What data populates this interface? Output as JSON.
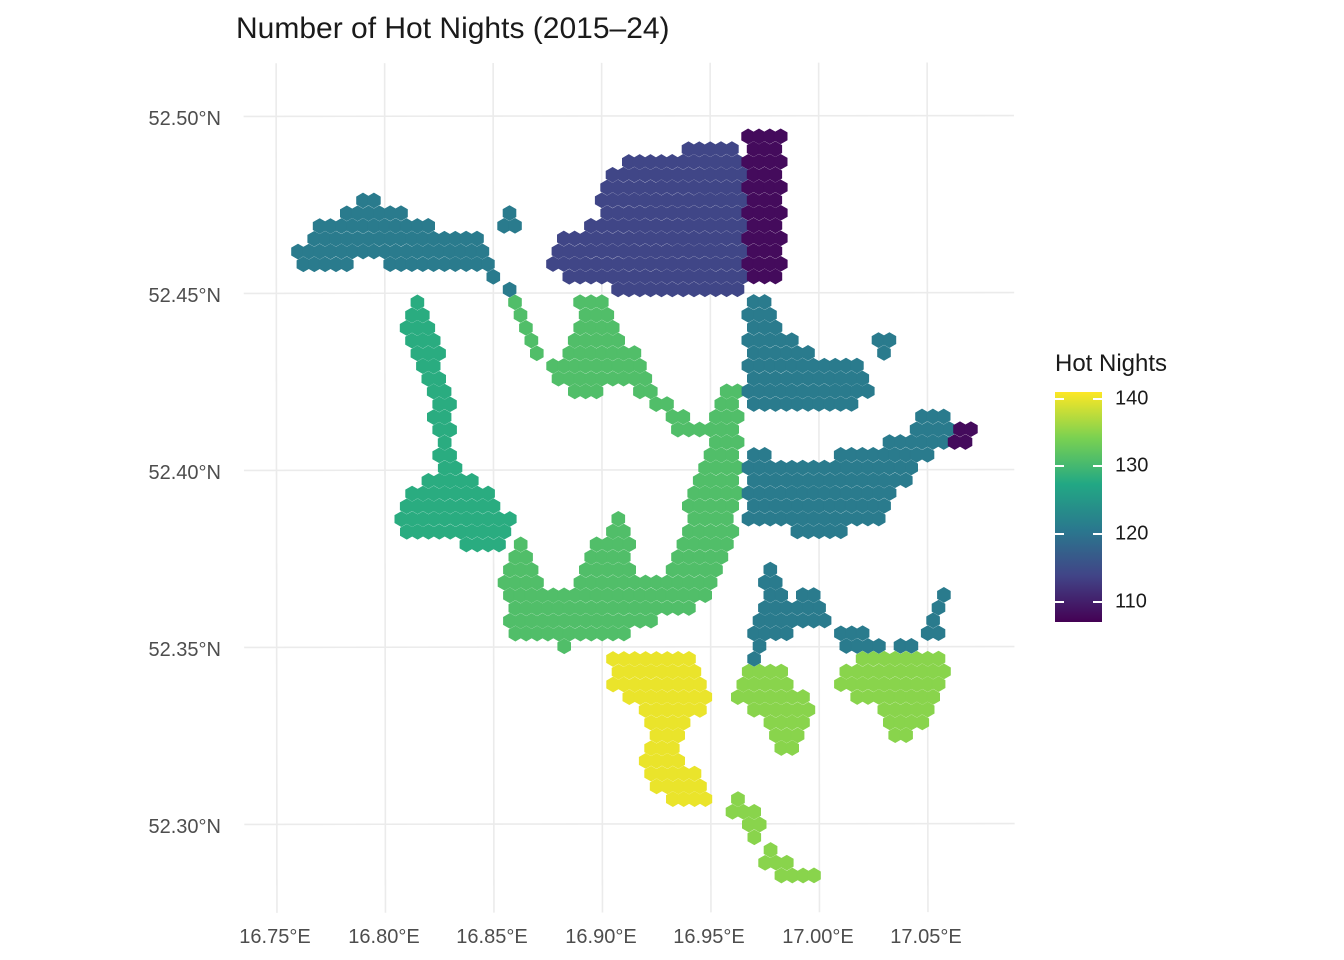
{
  "title": "Number of Hot Nights (2015–24)",
  "x_ticks": [
    "16.75°E",
    "16.80°E",
    "16.85°E",
    "16.90°E",
    "16.95°E",
    "17.00°E",
    "17.05°E"
  ],
  "y_ticks": [
    "52.50°N",
    "52.45°N",
    "52.40°N",
    "52.35°N",
    "52.30°N"
  ],
  "legend": {
    "title": "Hot Nights",
    "ticks": [
      "140",
      "130",
      "120",
      "110"
    ],
    "tick_values": [
      140,
      130,
      120,
      110
    ],
    "range": [
      107,
      141
    ],
    "colormap": "viridis",
    "colors": [
      "#440154",
      "#414487",
      "#2a788e",
      "#22a884",
      "#7ad151",
      "#fde725"
    ]
  },
  "chart_data": {
    "type": "heatmap",
    "title": "Number of Hot Nights (2015–24)",
    "xlabel": "",
    "ylabel": "",
    "xlim": [
      16.735,
      17.09
    ],
    "ylim": [
      52.275,
      52.515
    ],
    "grid": true,
    "legend_position": "right",
    "value_label": "Hot Nights",
    "cell_spacing": 0.005,
    "zones": [
      {
        "name": "far north-east strip",
        "value": 108,
        "polygon": [
          [
            16.965,
            52.497
          ],
          [
            16.983,
            52.497
          ],
          [
            16.983,
            52.455
          ],
          [
            16.99,
            52.452
          ],
          [
            16.965,
            52.451
          ]
        ]
      },
      {
        "name": "east tip",
        "value": 108,
        "polygon": [
          [
            17.061,
            52.414
          ],
          [
            17.072,
            52.413
          ],
          [
            17.066,
            52.406
          ],
          [
            17.06,
            52.408
          ]
        ]
      },
      {
        "name": "north",
        "value": 114,
        "polygon": [
          [
            16.901,
            52.484
          ],
          [
            16.92,
            52.49
          ],
          [
            16.945,
            52.491
          ],
          [
            16.96,
            52.493
          ],
          [
            16.965,
            52.489
          ],
          [
            16.965,
            52.451
          ],
          [
            16.928,
            52.449
          ],
          [
            16.89,
            52.452
          ],
          [
            16.876,
            52.458
          ],
          [
            16.882,
            52.467
          ],
          [
            16.898,
            52.471
          ]
        ]
      },
      {
        "name": "north-west",
        "value": 121,
        "polygon": [
          [
            16.755,
            52.46
          ],
          [
            16.77,
            52.47
          ],
          [
            16.795,
            52.478
          ],
          [
            16.815,
            52.47
          ],
          [
            16.845,
            52.465
          ],
          [
            16.852,
            52.456
          ],
          [
            16.86,
            52.45
          ],
          [
            16.85,
            52.454
          ],
          [
            16.835,
            52.456
          ],
          [
            16.81,
            52.455
          ],
          [
            16.795,
            52.46
          ],
          [
            16.775,
            52.456
          ],
          [
            16.765,
            52.457
          ]
        ]
      },
      {
        "name": "north-west islet",
        "value": 121,
        "polygon": [
          [
            16.854,
            52.474
          ],
          [
            16.86,
            52.474
          ],
          [
            16.86,
            52.468
          ],
          [
            16.854,
            52.468
          ]
        ]
      },
      {
        "name": "east",
        "value": 121,
        "polygon": [
          [
            16.965,
            52.451
          ],
          [
            16.975,
            52.448
          ],
          [
            16.985,
            52.438
          ],
          [
            16.998,
            52.432
          ],
          [
            17.015,
            52.433
          ],
          [
            17.025,
            52.425
          ],
          [
            17.018,
            52.417
          ],
          [
            17.0,
            52.418
          ],
          [
            16.985,
            52.416
          ],
          [
            16.965,
            52.415
          ]
        ]
      },
      {
        "name": "east-centre",
        "value": 121,
        "polygon": [
          [
            16.965,
            52.407
          ],
          [
            16.978,
            52.404
          ],
          [
            16.995,
            52.403
          ],
          [
            17.015,
            52.405
          ],
          [
            17.038,
            52.409
          ],
          [
            17.045,
            52.415
          ],
          [
            17.058,
            52.416
          ],
          [
            17.062,
            52.408
          ],
          [
            17.048,
            52.401
          ],
          [
            17.035,
            52.393
          ],
          [
            17.03,
            52.386
          ],
          [
            17.015,
            52.383
          ],
          [
            17.0,
            52.381
          ],
          [
            16.985,
            52.383
          ],
          [
            16.965,
            52.386
          ]
        ]
      },
      {
        "name": "east islet",
        "value": 121,
        "polygon": [
          [
            17.027,
            52.44
          ],
          [
            17.034,
            52.44
          ],
          [
            17.034,
            52.43
          ],
          [
            17.027,
            52.43
          ]
        ]
      },
      {
        "name": "south-east pocket",
        "value": 121,
        "polygon": [
          [
            16.968,
            52.356
          ],
          [
            16.978,
            52.374
          ],
          [
            16.988,
            52.364
          ],
          [
            16.998,
            52.366
          ],
          [
            17.004,
            52.357
          ],
          [
            16.992,
            52.354
          ],
          [
            16.978,
            52.353
          ],
          [
            16.97,
            52.346
          ]
        ]
      },
      {
        "name": "south-east strip",
        "value": 121,
        "polygon": [
          [
            17.008,
            52.357
          ],
          [
            17.02,
            52.355
          ],
          [
            17.033,
            52.35
          ],
          [
            17.055,
            52.352
          ],
          [
            17.06,
            52.372
          ],
          [
            17.055,
            52.362
          ],
          [
            17.045,
            52.349
          ],
          [
            17.03,
            52.347
          ],
          [
            17.01,
            52.347
          ]
        ]
      },
      {
        "name": "west arm",
        "value": 128,
        "polygon": [
          [
            16.812,
            52.449
          ],
          [
            16.824,
            52.443
          ],
          [
            16.826,
            52.432
          ],
          [
            16.832,
            52.42
          ],
          [
            16.832,
            52.403
          ],
          [
            16.84,
            52.398
          ],
          [
            16.85,
            52.392
          ],
          [
            16.86,
            52.385
          ],
          [
            16.855,
            52.376
          ],
          [
            16.845,
            52.378
          ],
          [
            16.83,
            52.38
          ],
          [
            16.808,
            52.381
          ],
          [
            16.806,
            52.392
          ],
          [
            16.822,
            52.398
          ],
          [
            16.825,
            52.408
          ],
          [
            16.82,
            52.42
          ],
          [
            16.815,
            52.432
          ],
          [
            16.808,
            52.44
          ]
        ]
      },
      {
        "name": "central corridor",
        "value": 131,
        "polygon": [
          [
            16.858,
            52.452
          ],
          [
            16.862,
            52.44
          ],
          [
            16.868,
            52.432
          ],
          [
            16.882,
            52.43
          ],
          [
            16.89,
            52.448
          ],
          [
            16.9,
            52.451
          ],
          [
            16.908,
            52.44
          ],
          [
            16.918,
            52.43
          ],
          [
            16.932,
            52.418
          ],
          [
            16.946,
            52.412
          ],
          [
            16.964,
            52.428
          ],
          [
            16.964,
            52.39
          ],
          [
            16.955,
            52.372
          ],
          [
            16.948,
            52.362
          ],
          [
            16.925,
            52.357
          ],
          [
            16.905,
            52.352
          ],
          [
            16.88,
            52.35
          ],
          [
            16.86,
            52.352
          ],
          [
            16.852,
            52.368
          ],
          [
            16.862,
            52.384
          ],
          [
            16.87,
            52.374
          ],
          [
            16.875,
            52.365
          ],
          [
            16.885,
            52.368
          ],
          [
            16.895,
            52.38
          ],
          [
            16.9,
            52.38
          ],
          [
            16.908,
            52.392
          ],
          [
            16.912,
            52.38
          ],
          [
            16.918,
            52.368
          ],
          [
            16.93,
            52.37
          ],
          [
            16.935,
            52.38
          ],
          [
            16.942,
            52.395
          ],
          [
            16.95,
            52.408
          ],
          [
            16.935,
            52.41
          ],
          [
            16.925,
            52.418
          ],
          [
            16.908,
            52.425
          ],
          [
            16.89,
            52.42
          ],
          [
            16.872,
            52.43
          ]
        ]
      },
      {
        "name": "south",
        "value": 140,
        "polygon": [
          [
            16.903,
            52.35
          ],
          [
            16.93,
            52.35
          ],
          [
            16.945,
            52.345
          ],
          [
            16.952,
            52.335
          ],
          [
            16.942,
            52.33
          ],
          [
            16.935,
            52.32
          ],
          [
            16.948,
            52.313
          ],
          [
            16.95,
            52.306
          ],
          [
            16.938,
            52.303
          ],
          [
            16.925,
            52.308
          ],
          [
            16.918,
            52.316
          ],
          [
            16.922,
            52.33
          ],
          [
            16.912,
            52.336
          ],
          [
            16.903,
            52.34
          ]
        ]
      },
      {
        "name": "south-east",
        "value": 135,
        "polygon": [
          [
            16.96,
            52.34
          ],
          [
            16.97,
            52.347
          ],
          [
            16.982,
            52.345
          ],
          [
            16.992,
            52.338
          ],
          [
            17.0,
            52.332
          ],
          [
            17.01,
            52.344
          ],
          [
            17.025,
            52.348
          ],
          [
            17.045,
            52.348
          ],
          [
            17.058,
            52.348
          ],
          [
            17.058,
            52.338
          ],
          [
            17.05,
            52.33
          ],
          [
            17.04,
            52.322
          ],
          [
            17.035,
            52.322
          ],
          [
            17.03,
            52.332
          ],
          [
            17.02,
            52.334
          ],
          [
            17.008,
            52.338
          ],
          [
            16.998,
            52.33
          ],
          [
            16.99,
            52.318
          ],
          [
            16.978,
            52.32
          ],
          [
            16.975,
            52.33
          ],
          [
            16.962,
            52.333
          ]
        ]
      },
      {
        "name": "south-east islet",
        "value": 135,
        "polygon": [
          [
            16.962,
            52.312
          ],
          [
            16.972,
            52.302
          ],
          [
            16.978,
            52.297
          ],
          [
            16.968,
            52.295
          ],
          [
            16.958,
            52.305
          ]
        ]
      },
      {
        "name": "south tail",
        "value": 135,
        "polygon": [
          [
            16.974,
            52.294
          ],
          [
            16.99,
            52.288
          ],
          [
            17.002,
            52.287
          ],
          [
            16.998,
            52.282
          ],
          [
            16.985,
            52.284
          ],
          [
            16.972,
            52.29
          ]
        ]
      }
    ]
  }
}
